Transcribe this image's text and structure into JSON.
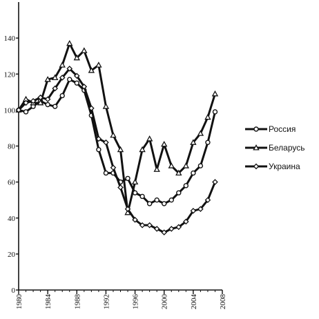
{
  "chart_data": {
    "type": "line",
    "title": "",
    "xlabel": "",
    "ylabel": "",
    "xlim": [
      1980,
      2008
    ],
    "ylim": [
      0,
      160
    ],
    "x_ticks": [
      "1980",
      "1984",
      "1988",
      "1992",
      "1996",
      "2000",
      "2004",
      "2008"
    ],
    "y_ticks": [
      "0",
      "20",
      "40",
      "60",
      "80",
      "100",
      "120",
      "140"
    ],
    "grid": false,
    "legend_position": "right",
    "x": [
      1980,
      1981,
      1982,
      1983,
      1984,
      1985,
      1986,
      1987,
      1988,
      1989,
      1990,
      1991,
      1992,
      1993,
      1994,
      1995,
      1996,
      1997,
      1998,
      1999,
      2000,
      2001,
      2002,
      2003,
      2004,
      2005,
      2006,
      2007
    ],
    "series": [
      {
        "name": "Россия",
        "marker": "circle",
        "values": [
          100,
          99,
          102,
          105,
          103,
          102,
          108,
          117,
          115,
          111,
          97,
          78,
          65,
          65,
          60,
          62,
          54,
          52,
          48,
          50,
          48,
          50,
          54,
          58,
          65,
          69,
          82,
          99
        ]
      },
      {
        "name": "Беларусь",
        "marker": "triangle",
        "values": [
          100,
          106,
          104,
          104,
          117,
          118,
          125,
          137,
          129,
          133,
          122,
          125,
          102,
          86,
          78,
          43,
          60,
          78,
          84,
          67,
          81,
          69,
          65,
          69,
          82,
          87,
          96,
          109
        ]
      },
      {
        "name": "Украина",
        "marker": "diamond",
        "values": [
          100,
          104,
          105,
          107,
          106,
          112,
          118,
          123,
          119,
          113,
          101,
          84,
          82,
          68,
          57,
          45,
          39,
          36,
          36,
          34,
          32,
          34,
          35,
          38,
          44,
          45,
          50,
          60
        ]
      }
    ]
  }
}
